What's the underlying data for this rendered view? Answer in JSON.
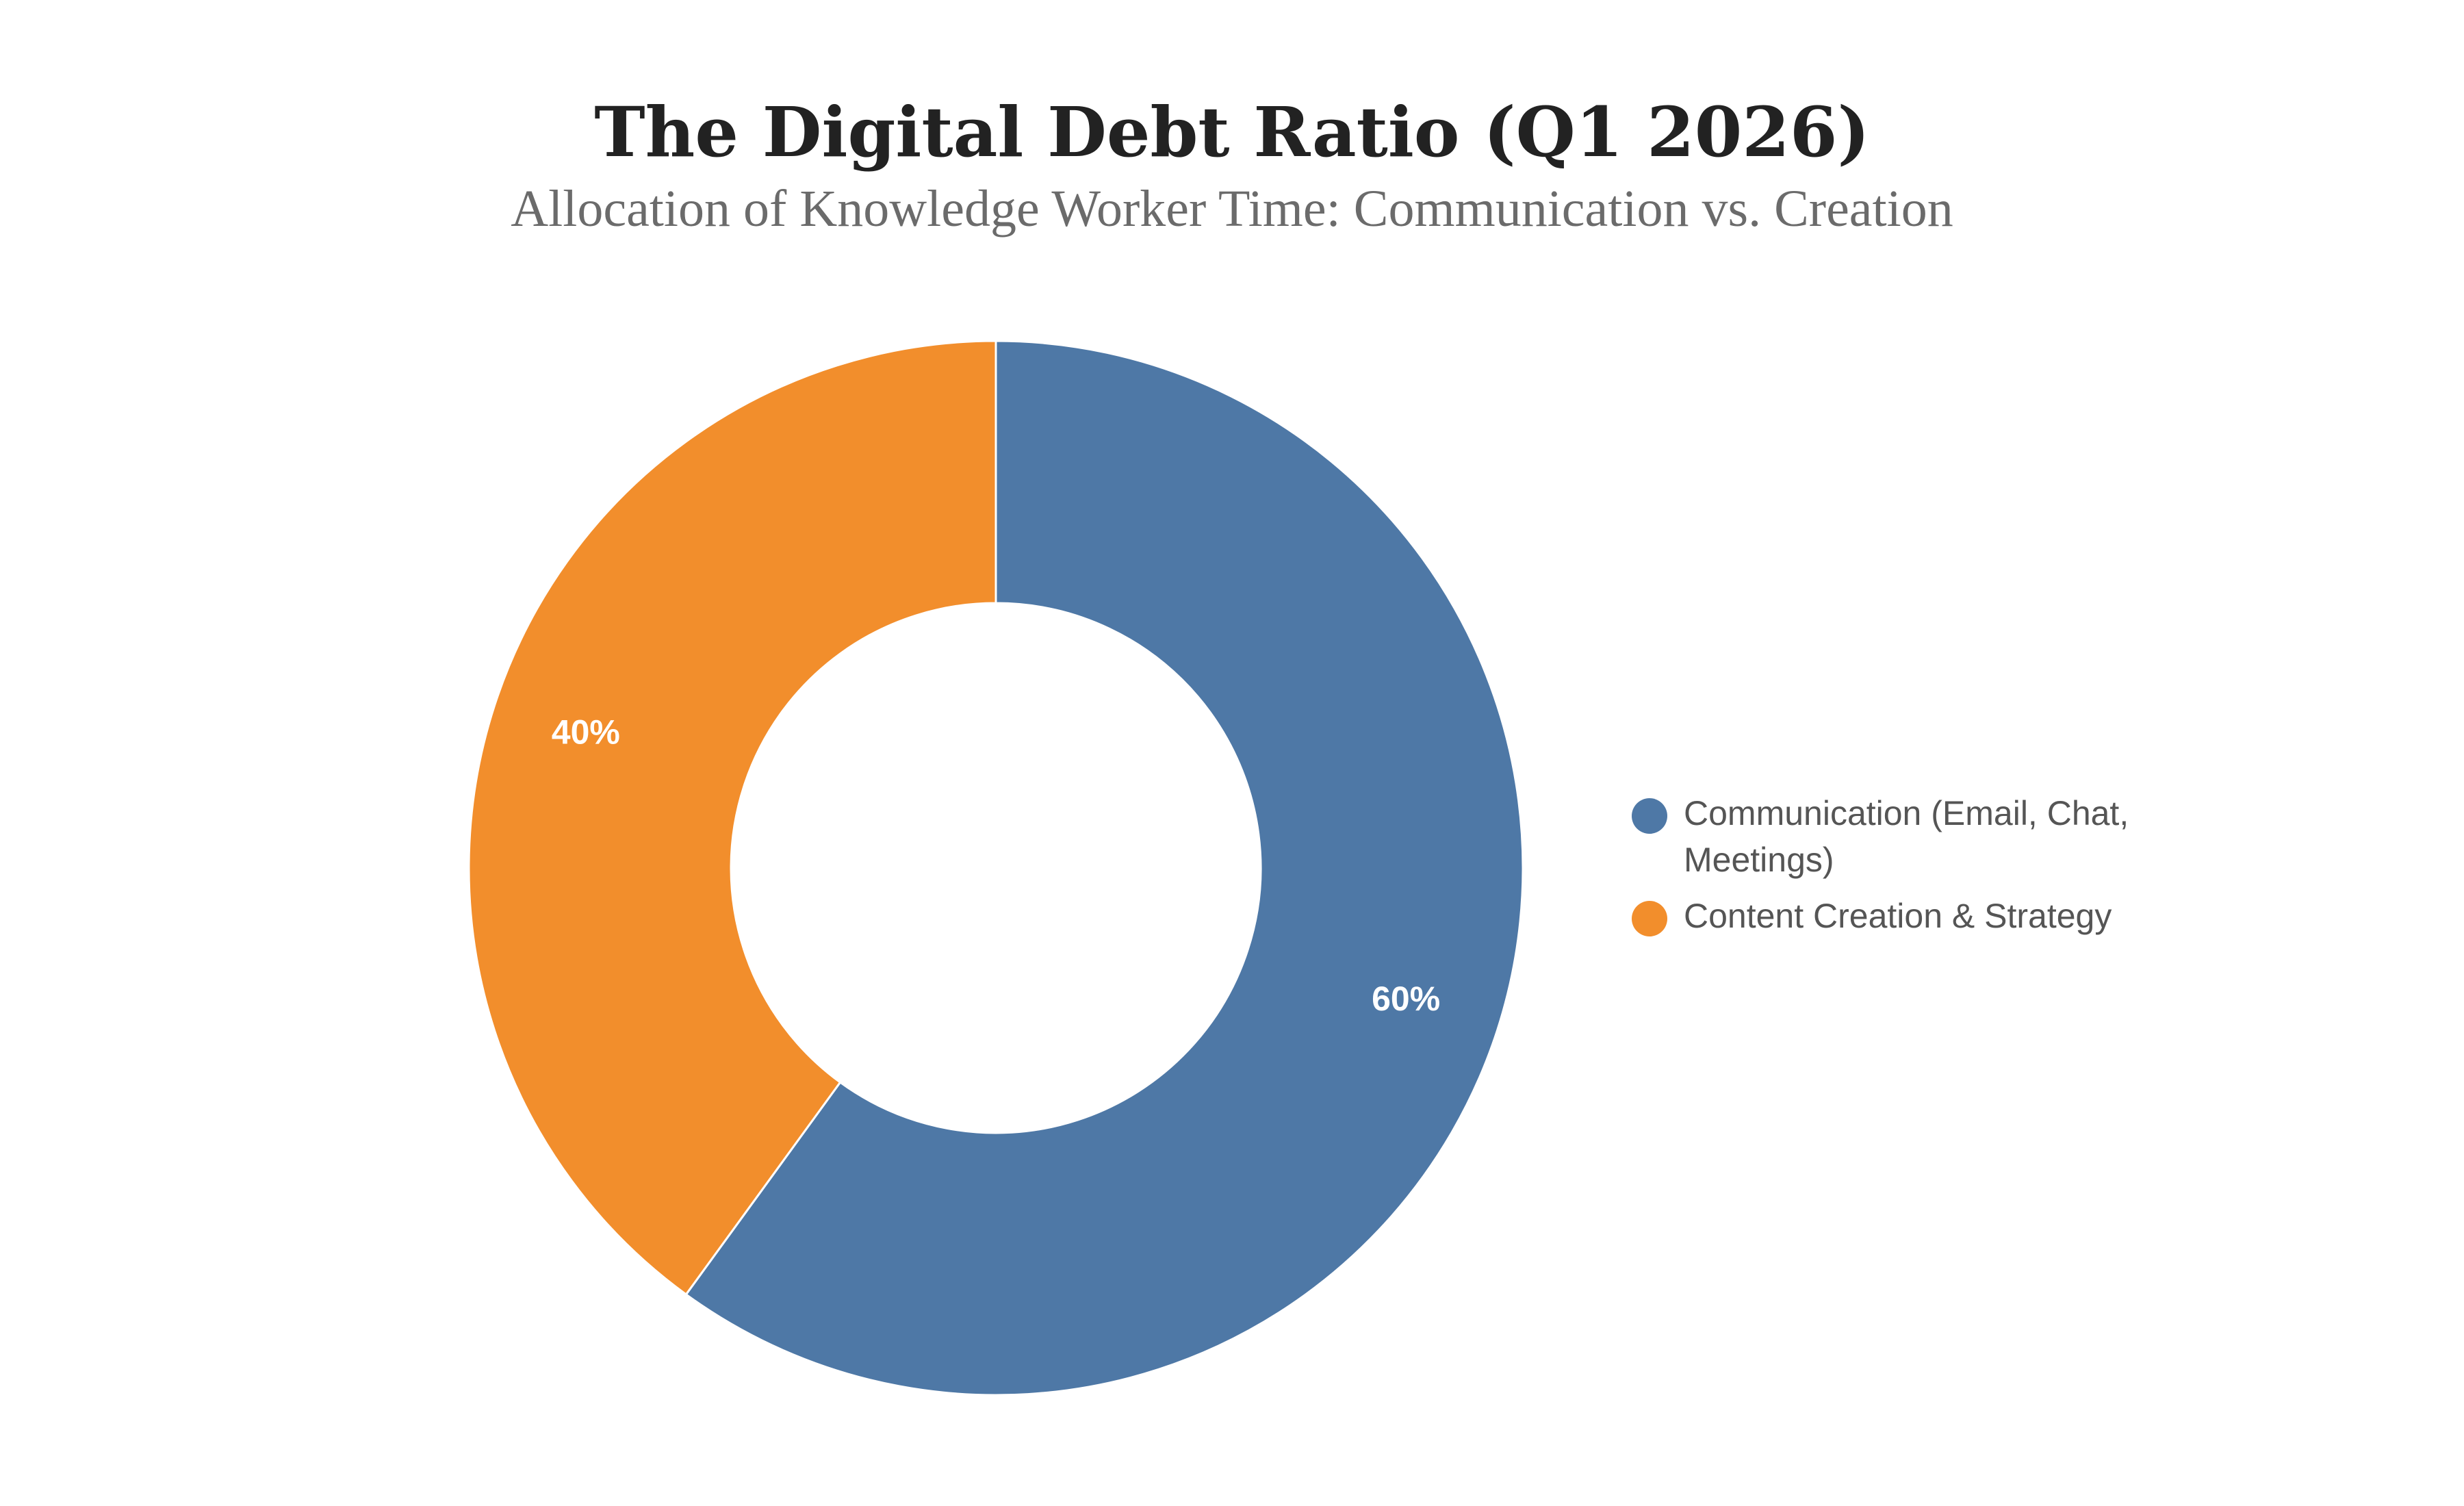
{
  "chart_data": {
    "type": "pie",
    "variant": "donut",
    "title": "The Digital Debt Ratio (Q1 2026)",
    "subtitle": "Allocation of Knowledge Worker Time: Communication vs. Creation",
    "slices": [
      {
        "label": "Communication (Email, Chat, Meetings)",
        "legend_lines": [
          "Communication (Email, Chat,",
          "Meetings)"
        ],
        "value": 60,
        "value_label": "60%",
        "color": "#4e78a6"
      },
      {
        "label": "Content Creation & Strategy",
        "legend_lines": [
          "Content Creation & Strategy"
        ],
        "value": 40,
        "value_label": "40%",
        "color": "#f28e2c"
      }
    ],
    "legend_position": "right"
  }
}
